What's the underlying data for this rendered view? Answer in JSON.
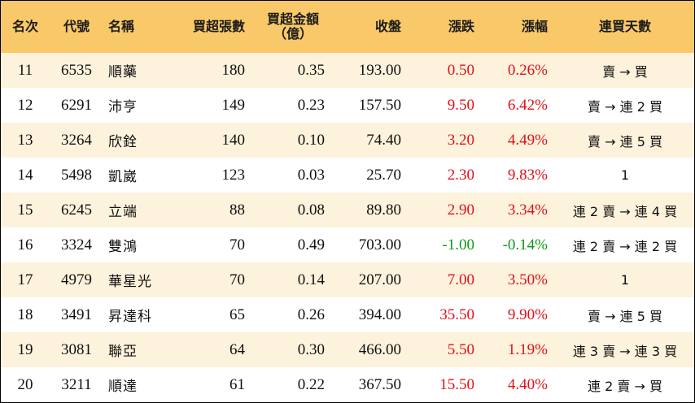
{
  "headers": {
    "rank": "名次",
    "code": "代號",
    "name": "名稱",
    "buy_lots": "買超張數",
    "buy_amount_line1": "買超金額",
    "buy_amount_line2": "（億）",
    "close": "收盤",
    "change": "漲跌",
    "pct": "漲幅",
    "days": "連買天數"
  },
  "colors": {
    "header_bg": "#f9c869",
    "stripe_bg": "#fdf2dc",
    "up": "#e0101a",
    "down": "#0a9a1a"
  },
  "rows": [
    {
      "rank": "11",
      "code": "6535",
      "name": "順藥",
      "lots": "180",
      "amount": "0.35",
      "close": "193.00",
      "change": "0.50",
      "pct": "0.26%",
      "days": "賣 → 買",
      "dir": "up"
    },
    {
      "rank": "12",
      "code": "6291",
      "name": "沛亨",
      "lots": "149",
      "amount": "0.23",
      "close": "157.50",
      "change": "9.50",
      "pct": "6.42%",
      "days": "賣 → 連 2 買",
      "dir": "up"
    },
    {
      "rank": "13",
      "code": "3264",
      "name": "欣銓",
      "lots": "140",
      "amount": "0.10",
      "close": "74.40",
      "change": "3.20",
      "pct": "4.49%",
      "days": "賣 → 連 5 買",
      "dir": "up"
    },
    {
      "rank": "14",
      "code": "5498",
      "name": "凱崴",
      "lots": "123",
      "amount": "0.03",
      "close": "25.70",
      "change": "2.30",
      "pct": "9.83%",
      "days": "1",
      "dir": "up"
    },
    {
      "rank": "15",
      "code": "6245",
      "name": "立端",
      "lots": "88",
      "amount": "0.08",
      "close": "89.80",
      "change": "2.90",
      "pct": "3.34%",
      "days": "連 2 賣 → 連 4 買",
      "dir": "up"
    },
    {
      "rank": "16",
      "code": "3324",
      "name": "雙鴻",
      "lots": "70",
      "amount": "0.49",
      "close": "703.00",
      "change": "-1.00",
      "pct": "-0.14%",
      "days": "連 2 賣 → 連 2 買",
      "dir": "down"
    },
    {
      "rank": "17",
      "code": "4979",
      "name": "華星光",
      "lots": "70",
      "amount": "0.14",
      "close": "207.00",
      "change": "7.00",
      "pct": "3.50%",
      "days": "1",
      "dir": "up"
    },
    {
      "rank": "18",
      "code": "3491",
      "name": "昇達科",
      "lots": "65",
      "amount": "0.26",
      "close": "394.00",
      "change": "35.50",
      "pct": "9.90%",
      "days": "賣 → 連 5 買",
      "dir": "up"
    },
    {
      "rank": "19",
      "code": "3081",
      "name": "聯亞",
      "lots": "64",
      "amount": "0.30",
      "close": "466.00",
      "change": "5.50",
      "pct": "1.19%",
      "days": "連 3 賣 → 連 3 買",
      "dir": "up"
    },
    {
      "rank": "20",
      "code": "3211",
      "name": "順達",
      "lots": "61",
      "amount": "0.22",
      "close": "367.50",
      "change": "15.50",
      "pct": "4.40%",
      "days": "連 2 賣 → 買",
      "dir": "up"
    }
  ]
}
